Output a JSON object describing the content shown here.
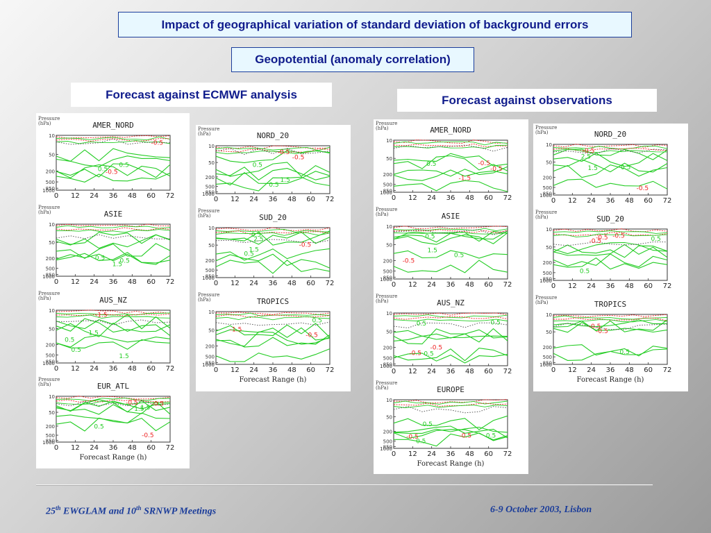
{
  "title": "Impact of geographical variation of standard deviation of background errors",
  "subtitle": "Geopotential (anomaly correlation)",
  "section_left": "Forecast against ECMWF analysis",
  "section_right": "Forecast against observations",
  "footer": {
    "left_a": "25",
    "left_sup_a": "th",
    "left_b": " EWGLAM and 10",
    "left_sup_b": "th",
    "left_c": " SRNWP Meetings",
    "right": "6-9 October 2003, Lisbon"
  },
  "colors": {
    "positive": "#22cc22",
    "negative": "#ee2222",
    "zero": "#555555"
  },
  "chart_data": [
    {
      "type": "contour",
      "group": "analysis",
      "title": "AMER_NORD",
      "ylabel": "Pressure (hPa)",
      "y_ticks": [
        "10",
        "50",
        "200",
        "500",
        "850",
        "1000"
      ],
      "x_ticks": [
        "0",
        "12",
        "24",
        "36",
        "48",
        "60",
        "72"
      ],
      "xlabel": "",
      "xlim": [
        0,
        72
      ],
      "contour_labels": [
        "-0.5",
        "0.5",
        "-0.5",
        "0.5"
      ]
    },
    {
      "type": "contour",
      "group": "analysis",
      "title": "ASIE",
      "ylabel": "Pressure (hPa)",
      "y_ticks": [
        "10",
        "50",
        "200",
        "500",
        "850",
        "1000"
      ],
      "x_ticks": [
        "0",
        "12",
        "24",
        "36",
        "48",
        "60",
        "72"
      ],
      "xlabel": "",
      "xlim": [
        0,
        72
      ],
      "contour_labels": [
        "1.5",
        "0.5",
        "0.5"
      ]
    },
    {
      "type": "contour",
      "group": "analysis",
      "title": "AUS_NZ",
      "ylabel": "Pressure (hPa)",
      "y_ticks": [
        "10",
        "50",
        "200",
        "500",
        "850",
        "1000"
      ],
      "x_ticks": [
        "0",
        "12",
        "24",
        "36",
        "48",
        "60",
        "72"
      ],
      "xlabel": "",
      "xlim": [
        0,
        72
      ],
      "contour_labels": [
        "1.5",
        "0.5",
        "1.5",
        "-1.5",
        "0.5"
      ]
    },
    {
      "type": "contour",
      "group": "analysis",
      "title": "EUR_ATL",
      "ylabel": "Pressure (hPa)",
      "y_ticks": [
        "10",
        "50",
        "200",
        "500",
        "850",
        "1000"
      ],
      "x_ticks": [
        "0",
        "12",
        "24",
        "36",
        "48",
        "60",
        "72"
      ],
      "xlabel": "Forecast Range (h)",
      "xlim": [
        0,
        72
      ],
      "contour_labels": [
        "-0.5",
        "-0.5",
        "-0.5",
        "0.5",
        "1.5",
        "1.5"
      ]
    },
    {
      "type": "contour",
      "group": "analysis",
      "title": "NORD_20",
      "ylabel": "Pressure (hPa)",
      "y_ticks": [
        "10",
        "50",
        "200",
        "500",
        "850",
        "1000"
      ],
      "x_ticks": [
        "0",
        "12",
        "24",
        "36",
        "48",
        "60",
        "72"
      ],
      "xlabel": "",
      "xlim": [
        0,
        72
      ],
      "contour_labels": [
        "-0.5",
        "-0.5",
        "1.5",
        "0.5",
        "0.5"
      ]
    },
    {
      "type": "contour",
      "group": "analysis",
      "title": "SUD_20",
      "ylabel": "Pressure (hPa)",
      "y_ticks": [
        "10",
        "50",
        "200",
        "500",
        "850",
        "1000"
      ],
      "x_ticks": [
        "0",
        "12",
        "24",
        "36",
        "48",
        "60",
        "72"
      ],
      "xlabel": "",
      "xlim": [
        0,
        72
      ],
      "contour_labels": [
        "-0.5",
        "2.5",
        "1.5",
        "0.5",
        "0.5"
      ]
    },
    {
      "type": "contour",
      "group": "analysis",
      "title": "TROPICS",
      "ylabel": "Pressure (hPa)",
      "y_ticks": [
        "10",
        "50",
        "200",
        "500",
        "850",
        "1000"
      ],
      "x_ticks": [
        "0",
        "12",
        "24",
        "36",
        "48",
        "60",
        "72"
      ],
      "xlabel": "Forecast Range (h)",
      "xlim": [
        0,
        72
      ],
      "contour_labels": [
        "-0.5",
        "-1.5",
        "0.5"
      ]
    },
    {
      "type": "contour",
      "group": "observations",
      "title": "AMER_NORD",
      "ylabel": "Pressure (hPa)",
      "y_ticks": [
        "10",
        "50",
        "200",
        "500",
        "850",
        "1000"
      ],
      "x_ticks": [
        "0",
        "12",
        "24",
        "36",
        "48",
        "60",
        "72"
      ],
      "xlabel": "",
      "xlim": [
        0,
        72
      ],
      "contour_labels": [
        "-0.5",
        "-0.5",
        "-1.5",
        "0.5"
      ]
    },
    {
      "type": "contour",
      "group": "observations",
      "title": "ASIE",
      "ylabel": "Pressure (hPa)",
      "y_ticks": [
        "10",
        "50",
        "200",
        "500",
        "850",
        "1000"
      ],
      "x_ticks": [
        "0",
        "12",
        "24",
        "36",
        "48",
        "60",
        "72"
      ],
      "xlabel": "",
      "xlim": [
        0,
        72
      ],
      "contour_labels": [
        "-0.5",
        "0.5",
        "1.5",
        "0.5"
      ]
    },
    {
      "type": "contour",
      "group": "observations",
      "title": "AUS_NZ",
      "ylabel": "Pressure (hPa)",
      "y_ticks": [
        "10",
        "50",
        "200",
        "500",
        "850",
        "1000"
      ],
      "x_ticks": [
        "0",
        "12",
        "24",
        "36",
        "48",
        "60",
        "72"
      ],
      "xlabel": "",
      "xlim": [
        0,
        72
      ],
      "contour_labels": [
        "-0.5",
        "-0.5",
        "0.5",
        "0.5",
        "0.5"
      ]
    },
    {
      "type": "contour",
      "group": "observations",
      "title": "EUROPE",
      "ylabel": "Pressure (hPa)",
      "y_ticks": [
        "10",
        "50",
        "200",
        "500",
        "850",
        "1000"
      ],
      "x_ticks": [
        "0",
        "12",
        "24",
        "36",
        "48",
        "60",
        "72"
      ],
      "xlabel": "Forecast Range (h)",
      "xlim": [
        0,
        72
      ],
      "contour_labels": [
        "0.5",
        "-0.5",
        "-0.5",
        "0.5",
        "0.5"
      ]
    },
    {
      "type": "contour",
      "group": "observations",
      "title": "NORD_20",
      "ylabel": "Pressure (hPa)",
      "y_ticks": [
        "10",
        "50",
        "200",
        "500",
        "850",
        "1000"
      ],
      "x_ticks": [
        "0",
        "12",
        "24",
        "36",
        "48",
        "60",
        "72"
      ],
      "xlabel": "",
      "xlim": [
        0,
        72
      ],
      "contour_labels": [
        "-0.5",
        "-0.5",
        "1.5",
        "2.5",
        "0.5"
      ]
    },
    {
      "type": "contour",
      "group": "observations",
      "title": "SUD_20",
      "ylabel": "Pressure (hPa)",
      "y_ticks": [
        "10",
        "50",
        "200",
        "500",
        "850",
        "1000"
      ],
      "x_ticks": [
        "0",
        "12",
        "24",
        "36",
        "48",
        "60",
        "72"
      ],
      "xlabel": "",
      "xlim": [
        0,
        72
      ],
      "contour_labels": [
        "-0.5",
        "-0.5",
        "0.5",
        "0.5",
        "-0.5"
      ]
    },
    {
      "type": "contour",
      "group": "observations",
      "title": "TROPICS",
      "ylabel": "Pressure (hPa)",
      "y_ticks": [
        "10",
        "50",
        "200",
        "500",
        "850",
        "1000"
      ],
      "x_ticks": [
        "0",
        "12",
        "24",
        "36",
        "48",
        "60",
        "72"
      ],
      "xlabel": "Forecast Range (h)",
      "xlim": [
        0,
        72
      ],
      "contour_labels": [
        "-0.5",
        "-0.5",
        "0.5"
      ]
    }
  ]
}
